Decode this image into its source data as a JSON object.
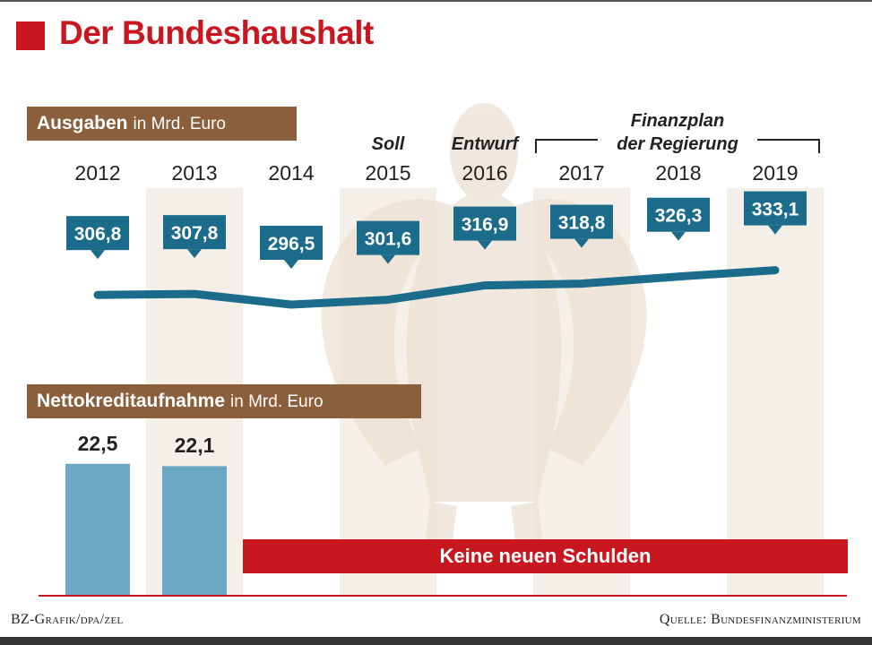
{
  "title": "Der Bundeshaushalt",
  "colors": {
    "accent_red": "#c8171e",
    "label_brown": "#8b5e3c",
    "line_blue": "#1b6b8a",
    "bar_blue": "#6ba8c6",
    "column_band": "#f4efe8",
    "eagle": "#ece1d3"
  },
  "sections": {
    "ausgaben": {
      "label": "Ausgaben",
      "unit": "in Mrd. Euro"
    },
    "kredit": {
      "label": "Nettokreditaufnahme",
      "unit": "in Mrd. Euro"
    }
  },
  "phases": {
    "soll": "Soll",
    "entwurf": "Entwurf",
    "finanzplan_line1": "Finanzplan",
    "finanzplan_line2": "der Regierung"
  },
  "banner": "Keine neuen Schulden",
  "footer": {
    "left": "BZ-Grafik/dpa/zel",
    "right": "Quelle: Bundesfinanzministerium"
  },
  "chart_data": [
    {
      "type": "line",
      "title": "Ausgaben",
      "ylabel": "in Mrd. Euro",
      "categories": [
        "2012",
        "2013",
        "2014",
        "2015",
        "2016",
        "2017",
        "2018",
        "2019"
      ],
      "values": [
        306.8,
        307.8,
        296.5,
        301.6,
        316.9,
        318.8,
        326.3,
        333.1
      ],
      "value_labels": [
        "306,8",
        "307,8",
        "296,5",
        "301,6",
        "316,9",
        "318,8",
        "326,3",
        "333,1"
      ]
    },
    {
      "type": "bar",
      "title": "Nettokreditaufnahme",
      "ylabel": "in Mrd. Euro",
      "categories": [
        "2012",
        "2013"
      ],
      "values": [
        22.5,
        22.1
      ],
      "value_labels": [
        "22,5",
        "22,1"
      ]
    }
  ]
}
